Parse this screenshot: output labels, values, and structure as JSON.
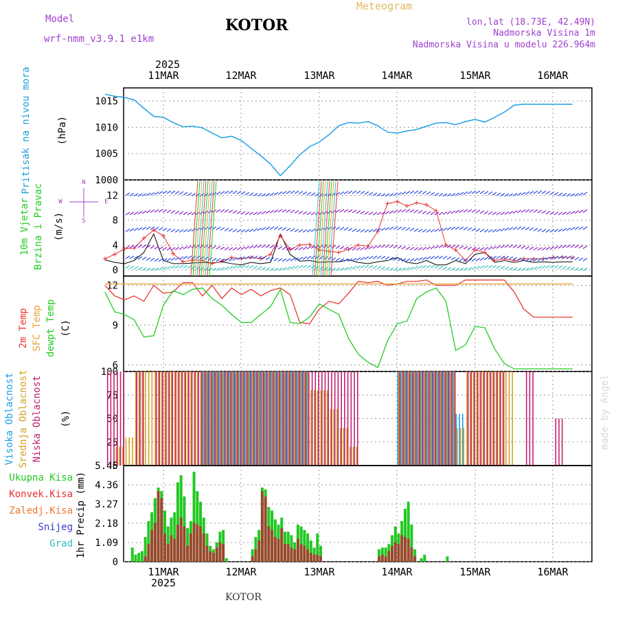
{
  "header": {
    "model_label": "Model",
    "model_name": "wrf-nmm_v3.9.1 e1km",
    "title": "KOTOR",
    "meteogram": "Meteogram",
    "lonlat": "lon,lat (18.73E, 42.49N)",
    "altitude": "Nadmorska Visina 1m",
    "model_altitude": "Nadmorska Visina u modelu 226.964m",
    "footer_city": "KOTOR",
    "watermark": "made by Angel",
    "year_top": "2025",
    "year_bottom": "2025"
  },
  "colors": {
    "pressure": "#1ea0e6",
    "temp2m": "#e8382e",
    "sfctemp": "#e8a23c",
    "dewpt": "#22cc22",
    "cloud_high": "#1ea0e6",
    "cloud_mid": "#d4a020",
    "cloud_low": "#c0206c",
    "precip_total": "#22c822",
    "precip_conv": "#b03030",
    "wind_gust": "#e83030",
    "wind_mean": "#000000",
    "label_purple": "#a040d0",
    "label_cyan": "#20a0d8"
  },
  "chart_data": [
    {
      "type": "line",
      "name": "pressure",
      "ylabel_main": "Pritisak na nivou mora",
      "ylabel_unit": "(hPa)",
      "yticks": [
        "1015",
        "1010",
        "1005",
        "1000"
      ],
      "ylim": [
        1000,
        1017.5
      ],
      "x_dates": [
        "11MAR",
        "12MAR",
        "13MAR",
        "14MAR",
        "15MAR",
        "16MAR"
      ],
      "x_hours": [
        0,
        3,
        6,
        9,
        12,
        15,
        18,
        21,
        24,
        27,
        30,
        33,
        36,
        39,
        42,
        45,
        48,
        51,
        54,
        57,
        60,
        63,
        66,
        69,
        72,
        75,
        78,
        81,
        84,
        87,
        90,
        93,
        96,
        99,
        102,
        105,
        108,
        111,
        114,
        117,
        120,
        123,
        126,
        129,
        132,
        135,
        138,
        141,
        144
      ],
      "values": [
        1016.3,
        1015.9,
        1015.7,
        1015.2,
        1013.6,
        1012.1,
        1011.9,
        1010.9,
        1010.1,
        1010.2,
        1009.9,
        1008.9,
        1008.0,
        1008.3,
        1007.5,
        1006.0,
        1004.6,
        1003.0,
        1000.8,
        1002.7,
        1004.8,
        1006.3,
        1007.2,
        1008.6,
        1010.3,
        1010.9,
        1010.8,
        1011.1,
        1010.3,
        1009.1,
        1008.9,
        1009.3,
        1009.6,
        1010.2,
        1010.8,
        1010.9,
        1010.5,
        1011.1,
        1011.5,
        1011.0,
        1011.9,
        1012.9,
        1014.2,
        1014.4,
        1014.4,
        1014.4,
        1014.4,
        1014.4,
        1014.4
      ]
    },
    {
      "type": "line",
      "name": "wind",
      "ylabel_main": "10m Vjetar",
      "ylabel_sub": "Brzina i Pravac",
      "ylabel_unit": "(m/s)",
      "compass_n": "N",
      "compass_e": "E",
      "compass_w": "W",
      "compass_s": "S",
      "yticks": [
        "12",
        "8",
        "4",
        "0"
      ],
      "ylim": [
        -1,
        14.5
      ],
      "series": [
        {
          "name": "mean",
          "values": [
            1.6,
            1.2,
            1.0,
            1.5,
            2.8,
            5.8,
            1.5,
            1.0,
            1.0,
            1.1,
            1.2,
            1.1,
            1.3,
            1.0,
            0.8,
            1.2,
            1.0,
            1.2,
            5.8,
            2.5,
            1.4,
            1.5,
            1.2,
            1.3,
            1.3,
            1.6,
            1.2,
            1.0,
            1.3,
            1.5,
            2.0,
            1.2,
            1.0,
            1.5,
            0.8,
            0.8,
            1.5,
            1.0,
            2.5,
            2.8,
            1.2,
            1.5,
            1.2,
            1.5,
            1.2,
            1.3,
            1.2,
            1.3,
            1.3
          ]
        },
        {
          "name": "gust",
          "values": [
            1.8,
            2.5,
            3.4,
            3.5,
            5.1,
            6.4,
            5.5,
            2.6,
            1.3,
            1.6,
            1.5,
            1.0,
            1.4,
            2.0,
            1.8,
            2.0,
            1.8,
            2.5,
            5.5,
            3.3,
            4.0,
            4.1,
            3.2,
            3.0,
            2.8,
            3.3,
            4.0,
            3.8,
            6.2,
            10.7,
            11.0,
            10.3,
            10.8,
            10.5,
            9.5,
            4.0,
            3.2,
            1.5,
            3.2,
            2.8,
            1.5,
            1.8,
            1.5,
            1.8,
            1.8,
            1.8,
            2.0,
            2.0,
            2.0
          ]
        }
      ]
    },
    {
      "type": "line",
      "name": "temperature",
      "ylabel_main": "2m Temp",
      "ylabel_sub": "SFC Temp",
      "ylabel_sub2": "dewpt Temp",
      "ylabel_unit": "(C)",
      "yticks": [
        "12",
        "9",
        "6"
      ],
      "ylim": [
        5.5,
        12.7
      ],
      "series": [
        {
          "name": "2m",
          "values": [
            12.0,
            11.2,
            10.9,
            11.2,
            10.8,
            12.0,
            11.4,
            11.5,
            12.2,
            12.2,
            11.2,
            12.0,
            11.0,
            11.8,
            11.3,
            11.7,
            11.2,
            11.6,
            11.8,
            11.3,
            9.2,
            9.1,
            10.2,
            10.8,
            10.6,
            11.4,
            12.3,
            12.2,
            12.3,
            12.0,
            12.1,
            12.3,
            12.3,
            12.4,
            12.0,
            12.0,
            12.0,
            12.4,
            12.4,
            12.4,
            12.4,
            12.4,
            11.5,
            10.2,
            9.6,
            9.6,
            9.6,
            9.6,
            9.6
          ]
        },
        {
          "name": "sfc",
          "values": [
            12.1,
            12.1,
            12.1,
            12.1,
            12.1,
            12.1,
            12.1,
            12.1,
            12.1,
            12.1,
            12.1,
            12.1,
            12.1,
            12.1,
            12.1,
            12.1,
            12.1,
            12.1,
            12.1,
            12.1,
            12.1,
            12.1,
            12.1,
            12.1,
            12.1,
            12.1,
            12.1,
            12.1,
            12.1,
            12.1,
            12.1,
            12.1,
            12.1,
            12.1,
            12.1,
            12.1,
            12.1,
            12.1,
            12.1,
            12.1,
            12.1,
            12.1,
            12.1,
            12.1,
            12.1,
            12.1,
            12.1,
            12.1,
            12.1
          ]
        },
        {
          "name": "dewpt",
          "values": [
            11.5,
            10.0,
            9.8,
            9.4,
            8.1,
            8.2,
            10.5,
            11.6,
            11.3,
            11.7,
            11.8,
            11.0,
            10.5,
            9.8,
            9.2,
            9.2,
            9.8,
            10.4,
            11.7,
            9.2,
            9.1,
            9.6,
            10.6,
            10.2,
            9.8,
            8.0,
            6.8,
            6.2,
            5.8,
            7.8,
            9.1,
            9.3,
            11.0,
            11.5,
            11.8,
            10.8,
            7.1,
            7.5,
            8.9,
            8.8,
            7.2,
            6.1,
            5.7,
            5.7,
            5.7,
            5.7,
            5.7,
            5.7,
            5.7
          ]
        }
      ]
    },
    {
      "type": "bar",
      "name": "clouds",
      "ylabel_main": "Visoka Oblacnost",
      "ylabel_sub": "Srednja Oblacnost",
      "ylabel_sub2": "Niska Oblacnost",
      "ylabel_unit": "(%)",
      "yticks": [
        "100",
        "75",
        "50",
        "25",
        "0"
      ],
      "ylim": [
        0,
        100
      ],
      "series": [
        {
          "name": "high",
          "values": [
            0,
            0,
            0,
            0,
            0,
            0,
            0,
            0,
            0,
            0,
            100,
            100,
            100,
            100,
            100,
            100,
            100,
            100,
            100,
            100,
            100,
            0,
            0,
            0,
            0,
            0,
            0,
            0,
            0,
            0,
            100,
            100,
            100,
            100,
            100,
            100,
            55,
            0,
            0,
            0,
            0,
            0,
            0,
            0,
            0,
            0,
            0,
            0,
            0
          ]
        },
        {
          "name": "mid",
          "values": [
            0,
            20,
            30,
            100,
            100,
            100,
            100,
            100,
            100,
            100,
            100,
            100,
            100,
            100,
            100,
            100,
            100,
            100,
            100,
            100,
            100,
            80,
            80,
            60,
            40,
            20,
            0,
            0,
            0,
            0,
            100,
            100,
            100,
            100,
            100,
            100,
            40,
            100,
            100,
            100,
            100,
            100,
            0,
            0,
            0,
            0,
            0,
            0,
            0
          ]
        },
        {
          "name": "low",
          "values": [
            100,
            100,
            0,
            100,
            0,
            100,
            100,
            100,
            100,
            100,
            100,
            100,
            100,
            100,
            100,
            100,
            100,
            100,
            100,
            100,
            100,
            100,
            100,
            100,
            100,
            100,
            0,
            0,
            0,
            0,
            100,
            100,
            100,
            100,
            100,
            100,
            0,
            100,
            100,
            100,
            100,
            0,
            0,
            100,
            0,
            0,
            50,
            0,
            0
          ]
        }
      ]
    },
    {
      "type": "bar",
      "name": "precipitation",
      "ylabel_main": "1hr Precip",
      "ylabel_unit": "(mm)",
      "legend": [
        "Ukupna Kisa",
        "Konvek.Kisa",
        "Zaledj.Kisa",
        "Snijeg",
        "Grad"
      ],
      "yticks": [
        "5.45",
        "4.36",
        "3.27",
        "2.18",
        "1.09",
        "0"
      ],
      "ylim": [
        0,
        5.45
      ],
      "series": [
        {
          "name": "total",
          "values": [
            0.2,
            0.3,
            0.0,
            0.0,
            0.0,
            0.0,
            0.0,
            0.8,
            0.4,
            0.5,
            0.6,
            1.4,
            2.3,
            2.8,
            3.6,
            4.2,
            4.0,
            2.9,
            2.0,
            2.5,
            2.8,
            4.5,
            4.9,
            3.7,
            1.9,
            2.3,
            5.1,
            4.0,
            3.4,
            2.5,
            1.6,
            0.9,
            0.7,
            1.1,
            1.7,
            1.8,
            0.2,
            0.0,
            0.0,
            0.0,
            0.0,
            0.0,
            0.0,
            0.0,
            0.7,
            1.4,
            1.8,
            4.2,
            4.1,
            3.1,
            2.9,
            2.4,
            2.1,
            2.5,
            1.7,
            1.7,
            1.5,
            1.1,
            2.1,
            2.0,
            1.8,
            1.6,
            1.2,
            0.8,
            1.6,
            0.9,
            0.0,
            0.0,
            0.0,
            0.0,
            0.0,
            0.0,
            0.0,
            0.0,
            0.0,
            0.0,
            0.0,
            0.0,
            0.0,
            0.0,
            0.0,
            0.0,
            0.0,
            0.7,
            0.8,
            0.8,
            1.0,
            1.5,
            2.0,
            1.6,
            2.3,
            3.0,
            3.4,
            2.1,
            0.7,
            0.0,
            0.2,
            0.4,
            0.0,
            0.0,
            0.0,
            0.0,
            0.0,
            0.0,
            0.3,
            0.0
          ]
        },
        {
          "name": "convective",
          "values": [
            0,
            0,
            0,
            0,
            0,
            0,
            0,
            0,
            0,
            0,
            0,
            0.3,
            1.0,
            1.8,
            2.2,
            4.0,
            3.6,
            1.6,
            1.0,
            1.5,
            1.3,
            2.1,
            2.5,
            2.0,
            0.9,
            1.6,
            2.2,
            2.1,
            2.0,
            1.6,
            0.9,
            0.6,
            0.5,
            0.8,
            1.1,
            1.0,
            0,
            0,
            0,
            0,
            0,
            0,
            0,
            0,
            0.3,
            0.7,
            1.2,
            4.0,
            3.7,
            2.0,
            1.8,
            1.4,
            1.3,
            1.9,
            1.0,
            1.0,
            0.8,
            0.7,
            1.3,
            1.0,
            0.9,
            0.7,
            0.5,
            0.4,
            0.4,
            0.3,
            0,
            0,
            0,
            0,
            0,
            0,
            0,
            0,
            0,
            0,
            0,
            0,
            0,
            0,
            0,
            0,
            0,
            0.3,
            0.4,
            0.3,
            0.6,
            0.9,
            1.1,
            1.0,
            1.5,
            1.4,
            1.3,
            0.8,
            0.3,
            0,
            0,
            0,
            0,
            0,
            0,
            0,
            0,
            0,
            0,
            0
          ]
        }
      ]
    }
  ]
}
